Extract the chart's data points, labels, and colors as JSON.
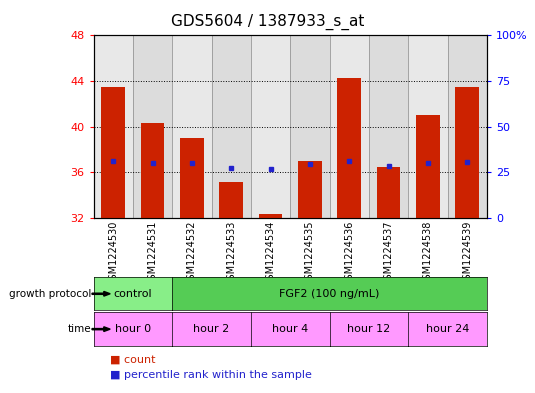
{
  "title": "GDS5604 / 1387933_s_at",
  "samples": [
    "GSM1224530",
    "GSM1224531",
    "GSM1224532",
    "GSM1224533",
    "GSM1224534",
    "GSM1224535",
    "GSM1224536",
    "GSM1224537",
    "GSM1224538",
    "GSM1224539"
  ],
  "count_values": [
    43.5,
    40.3,
    39.0,
    35.2,
    32.4,
    37.0,
    44.3,
    36.5,
    41.0,
    43.5
  ],
  "percentile_values": [
    37.0,
    36.8,
    36.8,
    36.4,
    36.3,
    36.7,
    37.0,
    36.6,
    36.8,
    36.9
  ],
  "y_min": 32,
  "y_max": 48,
  "y_ticks": [
    32,
    36,
    40,
    44,
    48
  ],
  "right_y_ticks": [
    0,
    25,
    50,
    75,
    100
  ],
  "bar_color": "#CC2200",
  "dot_color": "#2222CC",
  "bar_bg_colors": [
    "#E8E8E8",
    "#DCDCDC"
  ],
  "grid_color": "#000000",
  "protocol_control_color": "#88EE88",
  "protocol_fgf2_color": "#55CC55",
  "time_color_light": "#FF99FF",
  "time_color_dark": "#EE55EE",
  "control_span": [
    0,
    2
  ],
  "fgf2_span": [
    2,
    10
  ],
  "time_groups": [
    {
      "label": "hour 0",
      "span": [
        0,
        2
      ]
    },
    {
      "label": "hour 2",
      "span": [
        2,
        4
      ]
    },
    {
      "label": "hour 4",
      "span": [
        4,
        6
      ]
    },
    {
      "label": "hour 12",
      "span": [
        6,
        8
      ]
    },
    {
      "label": "hour 24",
      "span": [
        8,
        10
      ]
    }
  ],
  "row_label_protocol": "growth protocol",
  "row_label_time": "time",
  "protocol_control_label": "control",
  "protocol_fgf2_label": "FGF2 (100 ng/mL)",
  "legend_count_label": "count",
  "legend_percentile_label": "percentile rank within the sample",
  "bar_width": 0.6,
  "title_fontsize": 11,
  "tick_fontsize": 8,
  "label_fontsize": 8
}
